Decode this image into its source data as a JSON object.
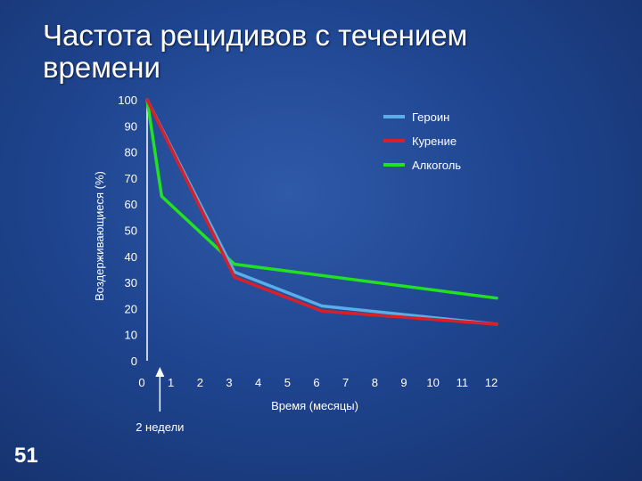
{
  "slide": {
    "title": "Частота рецидивов с течением времени",
    "page_number": "51"
  },
  "chart_data": {
    "type": "line",
    "xlabel": "Время (месяцы)",
    "ylabel": "Воздерживающиеся (%)",
    "xlim": [
      0,
      12
    ],
    "ylim": [
      0,
      100
    ],
    "x_ticks": [
      0,
      1,
      2,
      3,
      4,
      5,
      6,
      7,
      8,
      9,
      10,
      11,
      12
    ],
    "y_ticks": [
      0,
      10,
      20,
      30,
      40,
      50,
      60,
      70,
      80,
      90,
      100
    ],
    "grid": false,
    "legend": "top-right",
    "annotation": {
      "label": "2 недели",
      "x": 0.5
    },
    "series": [
      {
        "name": "Героин",
        "color": "#5aaee8",
        "x": [
          0,
          3,
          6,
          12
        ],
        "y": [
          100,
          34,
          21,
          14
        ]
      },
      {
        "name": "Курение",
        "color": "#d8202a",
        "x": [
          0,
          3,
          6,
          12
        ],
        "y": [
          100,
          32,
          19,
          14
        ]
      },
      {
        "name": "Алкоголь",
        "color": "#22e022",
        "x": [
          0,
          0.5,
          3,
          12
        ],
        "y": [
          100,
          63,
          37,
          24
        ]
      }
    ]
  }
}
